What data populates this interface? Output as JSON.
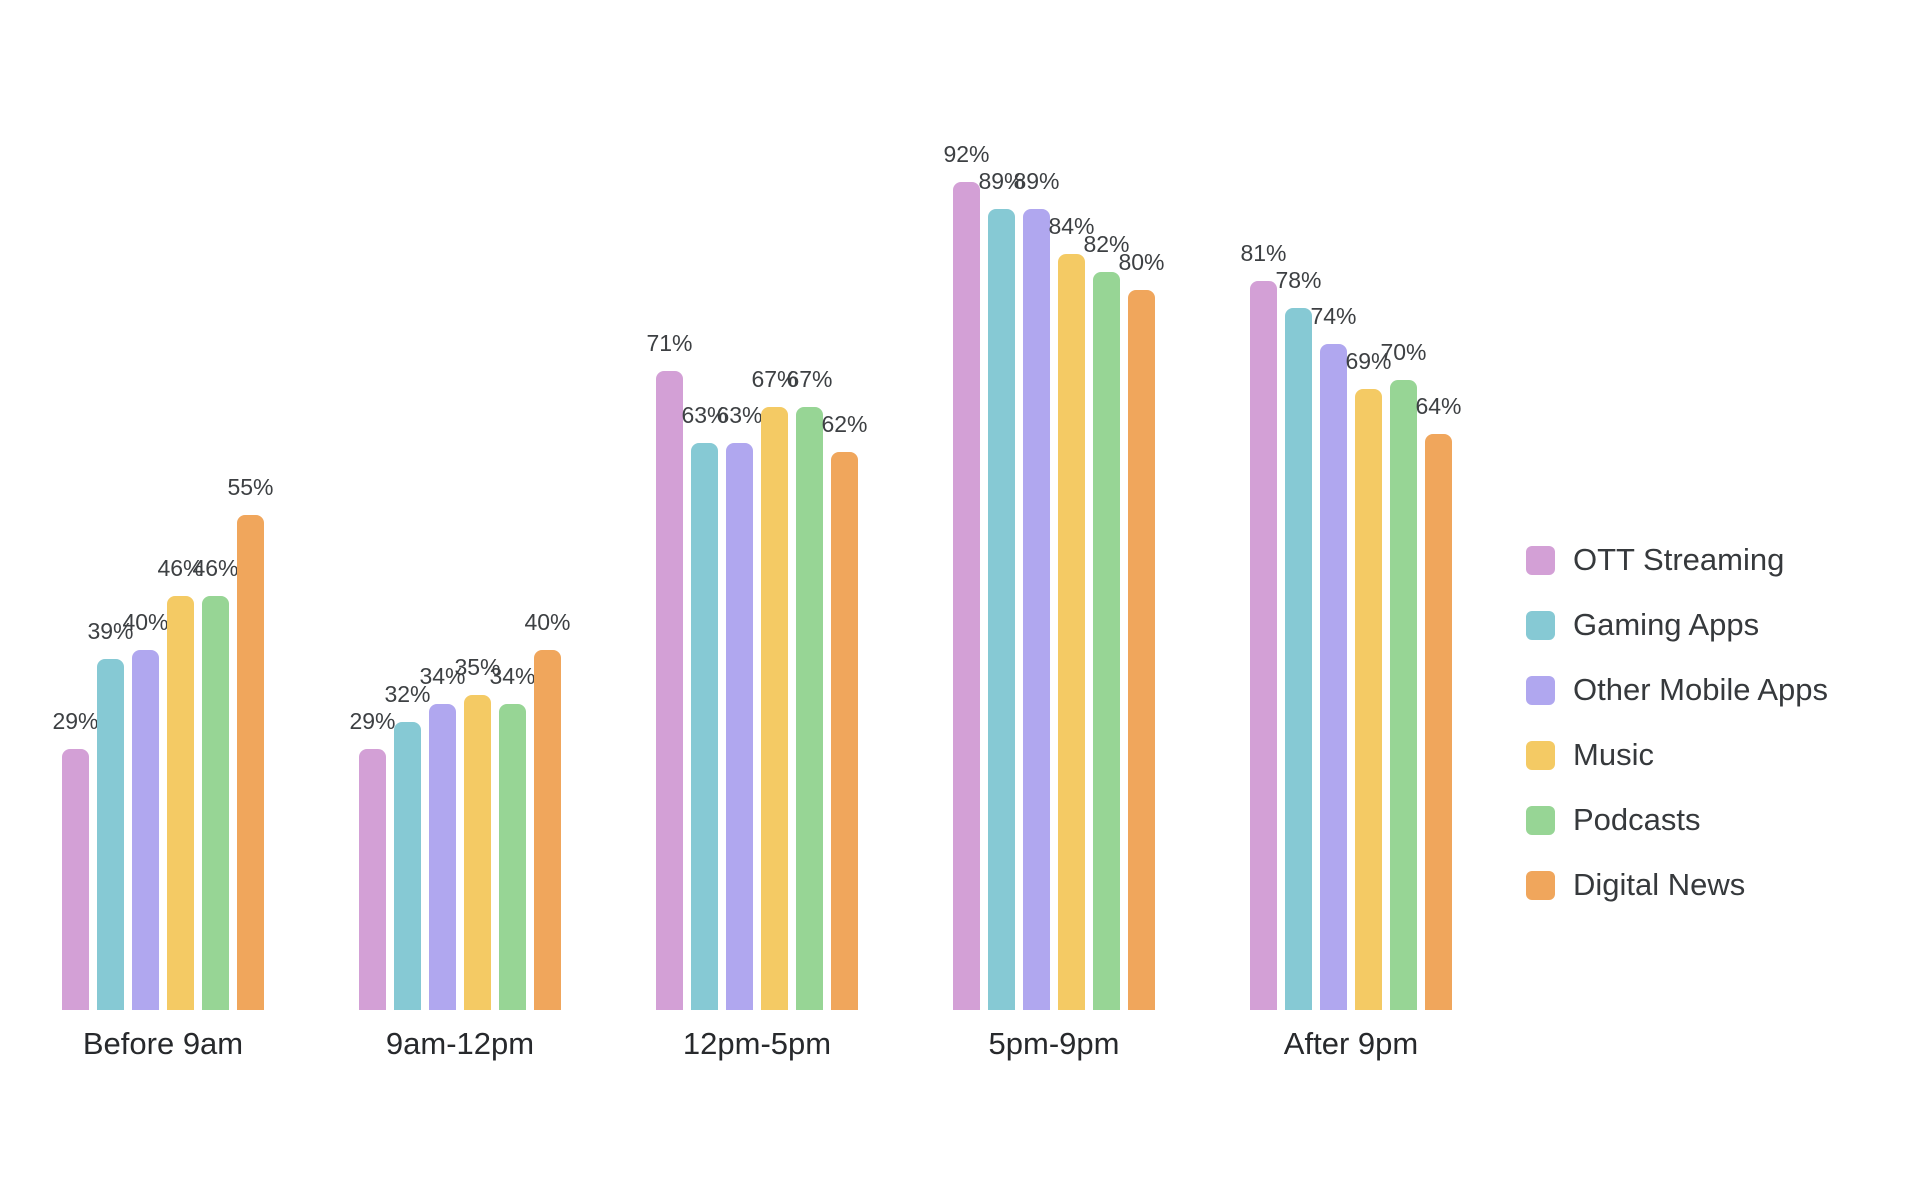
{
  "chart_data": {
    "type": "bar",
    "title": "",
    "categories": [
      "Before 9am",
      "9am-12pm",
      "12pm-5pm",
      "5pm-9pm",
      "After 9pm"
    ],
    "series": [
      {
        "name": "OTT Streaming",
        "color": "#d3a0d6",
        "values": [
          29,
          29,
          71,
          92,
          81
        ]
      },
      {
        "name": "Gaming Apps",
        "color": "#86c9d4",
        "values": [
          39,
          32,
          63,
          89,
          78
        ]
      },
      {
        "name": "Other Mobile Apps",
        "color": "#b0a7ef",
        "values": [
          40,
          34,
          63,
          89,
          74
        ]
      },
      {
        "name": "Music",
        "color": "#f4ca64",
        "values": [
          46,
          35,
          67,
          84,
          69
        ]
      },
      {
        "name": "Podcasts",
        "color": "#97d595",
        "values": [
          46,
          34,
          67,
          82,
          70
        ]
      },
      {
        "name": "Digital News",
        "color": "#f0a65c",
        "values": [
          55,
          40,
          62,
          80,
          64
        ]
      }
    ],
    "value_suffix": "%",
    "ylim": [
      0,
      100
    ],
    "grid": false,
    "data_labels": true,
    "legend_position": "right",
    "background": "#ffffff"
  }
}
